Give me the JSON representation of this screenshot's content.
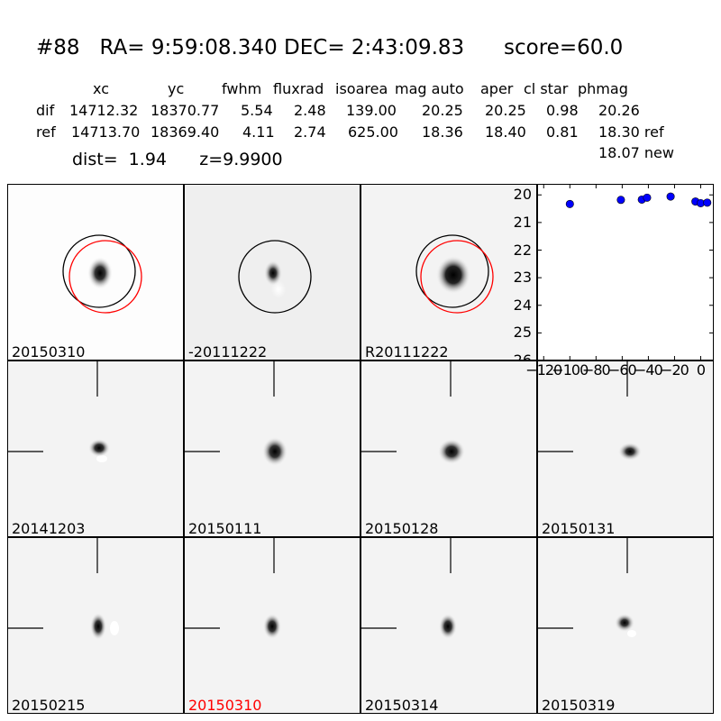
{
  "header": {
    "title": "#88   RA= 9:59:08.340 DEC= 2:43:09.83      score=60.0",
    "columns": [
      "xc",
      "yc",
      "fwhm",
      "fluxrad",
      "isoarea",
      "mag auto",
      "aper",
      "cl star",
      "phmag"
    ],
    "rows": [
      {
        "label": "dif",
        "values": [
          "14712.32",
          "18370.77",
          "5.54",
          "2.48",
          "139.00",
          "20.25",
          "20.25",
          "0.98",
          "20.26"
        ]
      },
      {
        "label": "ref",
        "values": [
          "14713.70",
          "18369.40",
          "4.11",
          "2.74",
          "625.00",
          "18.36",
          "18.40",
          "0.81",
          "18.30 ref"
        ]
      }
    ],
    "dist_line": "dist=  1.94      z=9.9900",
    "new_mag": "18.07 new"
  },
  "panels": [
    {
      "label": "20150310"
    },
    {
      "label": "-20111222"
    },
    {
      "label": "R20111222"
    },
    {
      "label": "20141203"
    },
    {
      "label": "20150111"
    },
    {
      "label": "20150128"
    },
    {
      "label": "20150131"
    },
    {
      "label": "20150215"
    },
    {
      "label": "20150310",
      "highlight": "#ff0000"
    },
    {
      "label": "20150314"
    },
    {
      "label": "20150319"
    }
  ],
  "chart_data": {
    "type": "scatter",
    "x": [
      -100,
      -61,
      -45,
      -41,
      -23,
      -4,
      0,
      5
    ],
    "y": [
      20.33,
      20.18,
      20.17,
      20.1,
      20.06,
      20.24,
      20.3,
      20.28
    ],
    "xticks": [
      "-120",
      "-100",
      "-80",
      "-60",
      "-40",
      "-20",
      "0"
    ],
    "yticks": [
      "20",
      "21",
      "22",
      "23",
      "24",
      "25",
      "26"
    ],
    "xlim": [
      -125,
      10
    ],
    "ylim": [
      26,
      19.6
    ],
    "point_color": "#0000ff"
  }
}
